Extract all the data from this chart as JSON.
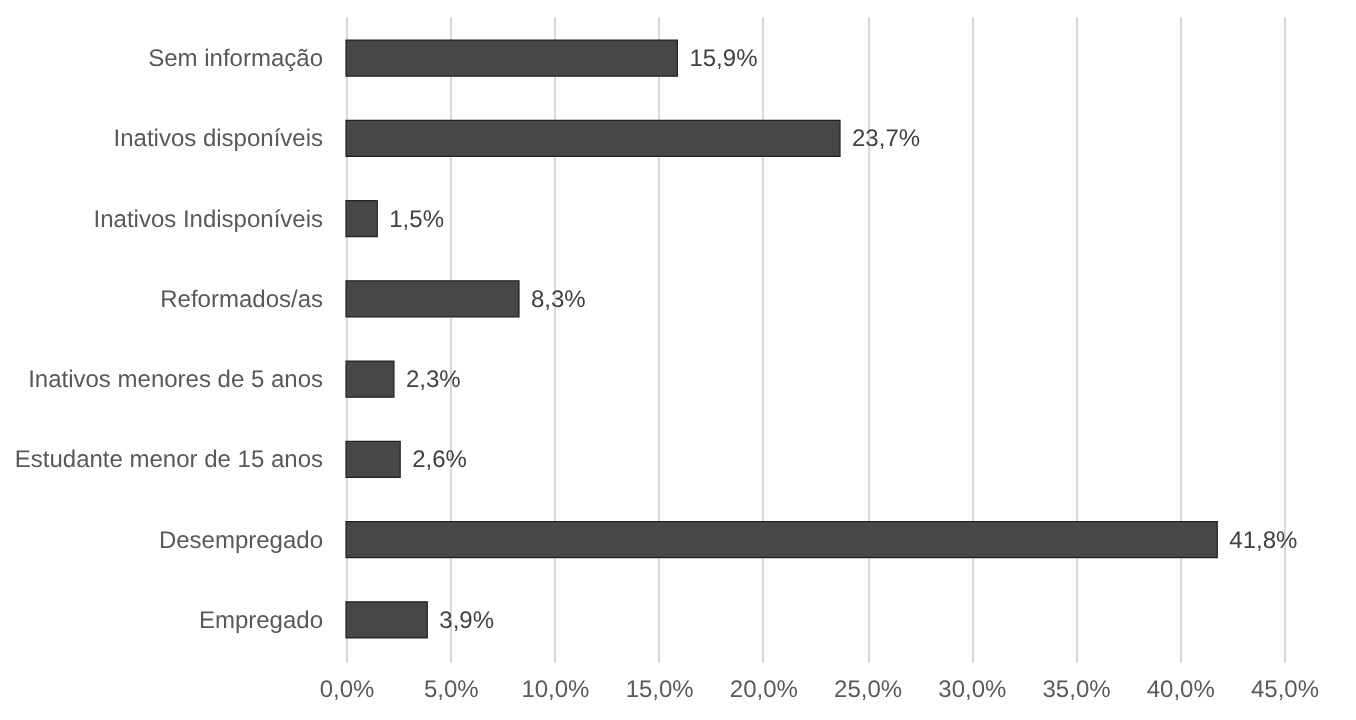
{
  "chart_data": {
    "type": "bar",
    "orientation": "horizontal",
    "categories": [
      "Sem informação",
      "Inativos disponíveis",
      "Inativos Indisponíveis",
      "Reformados/as",
      "Inativos menores de 5 anos",
      "Estudante menor de 15 anos",
      "Desempregado",
      "Empregado"
    ],
    "values": [
      15.9,
      23.7,
      1.5,
      8.3,
      2.3,
      2.6,
      41.8,
      3.9
    ],
    "value_labels": [
      "15,9%",
      "23,7%",
      "1,5%",
      "8,3%",
      "2,3%",
      "2,6%",
      "41,8%",
      "3,9%"
    ],
    "color": "#474747",
    "xlim": [
      0,
      45
    ],
    "xticks": [
      {
        "value": 0,
        "label": "0,0%"
      },
      {
        "value": 5,
        "label": "5,0%"
      },
      {
        "value": 10,
        "label": "10,0%"
      },
      {
        "value": 15,
        "label": "15,0%"
      },
      {
        "value": 20,
        "label": "20,0%"
      },
      {
        "value": 25,
        "label": "25,0%"
      },
      {
        "value": 30,
        "label": "30,0%"
      },
      {
        "value": 35,
        "label": "35,0%"
      },
      {
        "value": 40,
        "label": "40,0%"
      },
      {
        "value": 45,
        "label": "45,0%"
      }
    ],
    "grid": "x"
  }
}
